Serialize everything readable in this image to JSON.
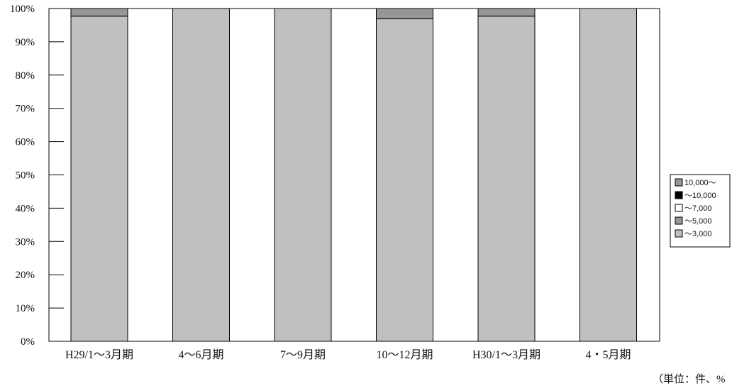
{
  "chart_data": {
    "type": "bar",
    "stacked": true,
    "categories": [
      "H29/1～3月期",
      "4～6月期",
      "7～9月期",
      "10～12月期",
      "H30/1～3月期",
      "4・5月期"
    ],
    "ylim": [
      0,
      100
    ],
    "yticks": [
      "0%",
      "10%",
      "20%",
      "30%",
      "40%",
      "50%",
      "60%",
      "70%",
      "80%",
      "90%",
      "100%"
    ],
    "ytick_values": [
      0,
      10,
      20,
      30,
      40,
      50,
      60,
      70,
      80,
      90,
      100
    ],
    "grid": false,
    "legend_position": "right",
    "series": [
      {
        "name": "～3,000",
        "color": "#c0c0c0",
        "values": [
          97.7,
          100,
          100,
          96.9,
          97.7,
          100
        ]
      },
      {
        "name": "～5,000",
        "color": "#969696",
        "values": [
          2.3,
          0,
          0,
          3.1,
          2.3,
          0
        ]
      },
      {
        "name": "～7,000",
        "color": "#ffffff",
        "values": [
          0,
          0,
          0,
          0,
          0,
          0
        ]
      },
      {
        "name": "～10,000",
        "color": "#000000",
        "values": [
          0,
          0,
          0,
          0,
          0,
          0
        ]
      },
      {
        "name": "10,000～",
        "color": "#969696",
        "values": [
          0,
          0,
          0,
          0,
          0,
          0
        ]
      }
    ],
    "legend_order": [
      "10,000～",
      "～10,000",
      "～7,000",
      "～5,000",
      "～3,000"
    ],
    "unit_note": "（単位：件、%"
  }
}
